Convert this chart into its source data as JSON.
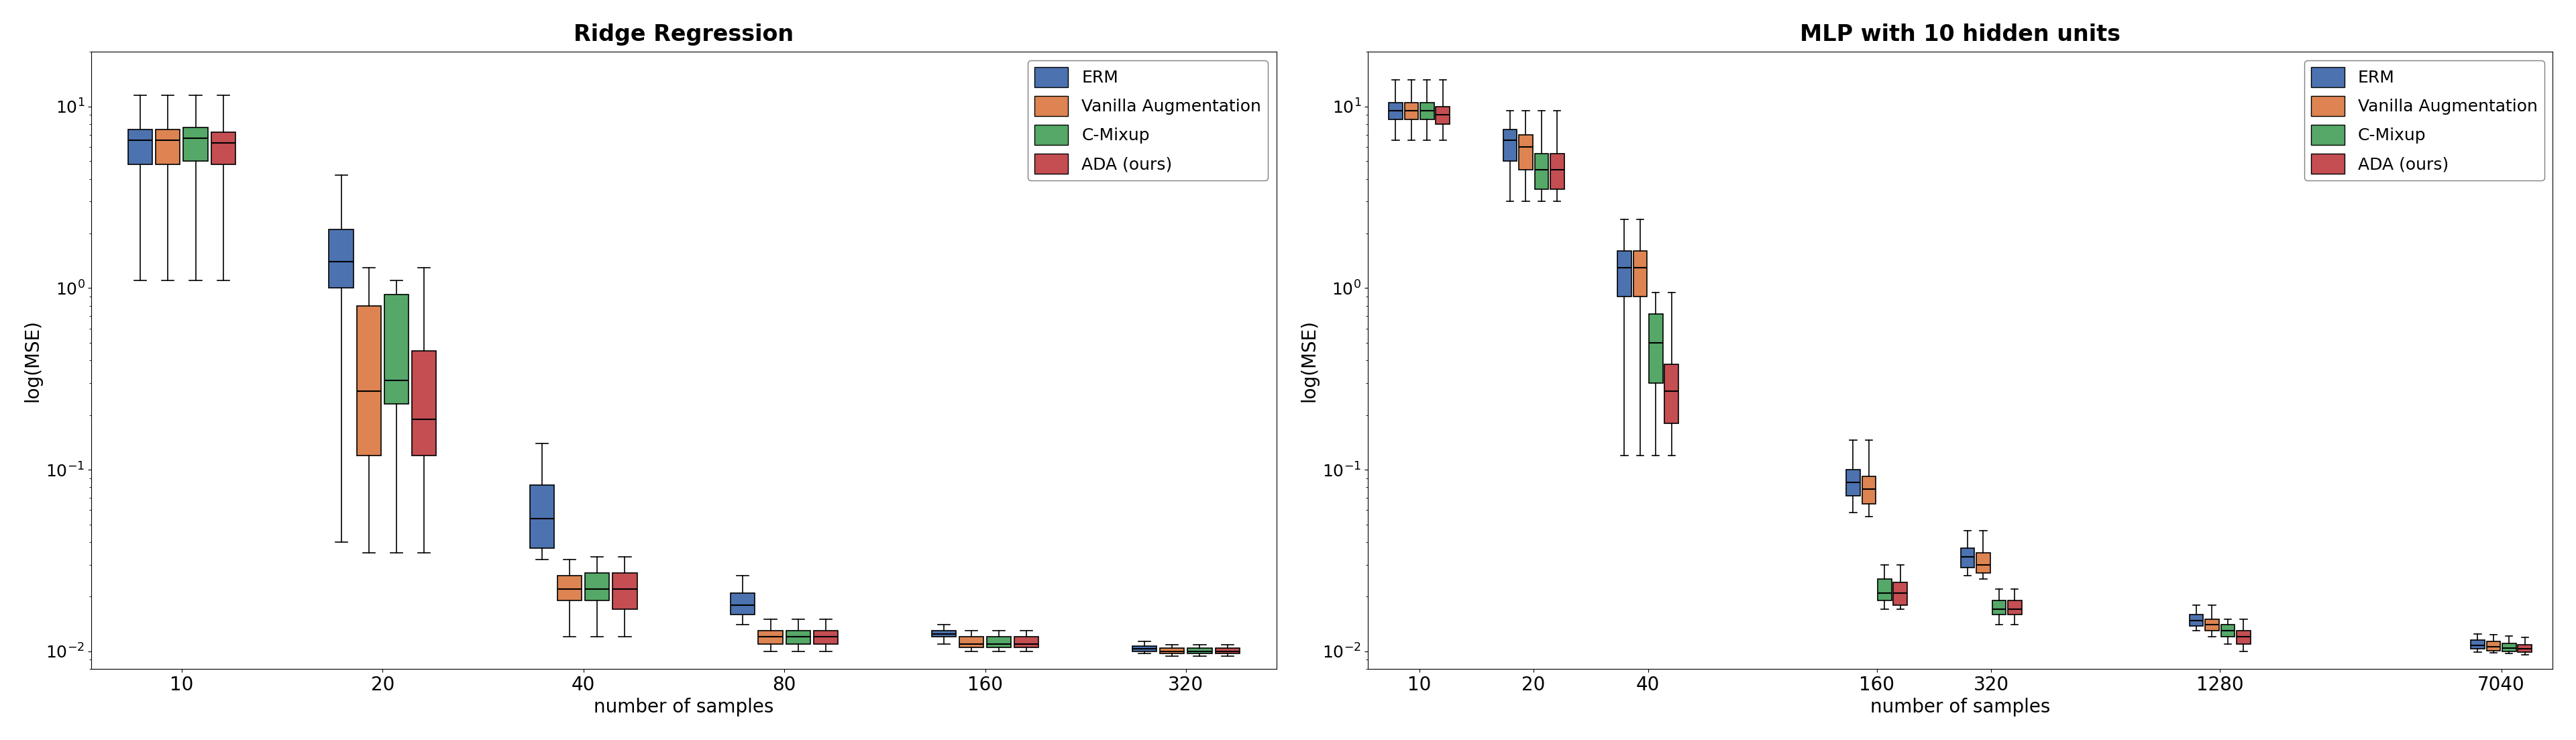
{
  "left_title": "Ridge Regression",
  "right_title": "MLP with 10 hidden units",
  "xlabel": "number of samples",
  "ylabel": "log(MSE)",
  "colors": {
    "ERM": "#4C72B0",
    "Vanilla Augmentation": "#DD8452",
    "C-Mixup": "#55A868",
    "ADA (ours)": "#C44E52"
  },
  "legend_labels": [
    "ERM",
    "Vanilla Augmentation",
    "C-Mixup",
    "ADA (ours)"
  ],
  "left_xticks": [
    10,
    20,
    40,
    80,
    160,
    320
  ],
  "right_xticks": [
    10,
    20,
    40,
    160,
    320,
    1280,
    7040
  ],
  "ylim_left": [
    0.008,
    20
  ],
  "ylim_right": [
    0.008,
    20
  ],
  "left_data": {
    "10": {
      "ERM": {
        "whislo": 1.1,
        "q1": 4.8,
        "med": 6.5,
        "q3": 7.5,
        "whishi": 11.5
      },
      "Vanilla Augmentation": {
        "whislo": 1.1,
        "q1": 4.8,
        "med": 6.5,
        "q3": 7.5,
        "whishi": 11.5
      },
      "C-Mixup": {
        "whislo": 1.1,
        "q1": 5.0,
        "med": 6.7,
        "q3": 7.7,
        "whishi": 11.5
      },
      "ADA (ours)": {
        "whislo": 1.1,
        "q1": 4.8,
        "med": 6.3,
        "q3": 7.2,
        "whishi": 11.5
      }
    },
    "20": {
      "ERM": {
        "whislo": 0.04,
        "q1": 1.0,
        "med": 1.4,
        "q3": 2.1,
        "whishi": 4.2
      },
      "Vanilla Augmentation": {
        "whislo": 0.035,
        "q1": 0.12,
        "med": 0.27,
        "q3": 0.8,
        "whishi": 1.3
      },
      "C-Mixup": {
        "whislo": 0.035,
        "q1": 0.23,
        "med": 0.31,
        "q3": 0.92,
        "whishi": 1.1
      },
      "ADA (ours)": {
        "whislo": 0.035,
        "q1": 0.12,
        "med": 0.19,
        "q3": 0.45,
        "whishi": 1.3
      }
    },
    "40": {
      "ERM": {
        "whislo": 0.032,
        "q1": 0.037,
        "med": 0.054,
        "q3": 0.082,
        "whishi": 0.14
      },
      "Vanilla Augmentation": {
        "whislo": 0.012,
        "q1": 0.019,
        "med": 0.022,
        "q3": 0.026,
        "whishi": 0.032
      },
      "C-Mixup": {
        "whislo": 0.012,
        "q1": 0.019,
        "med": 0.022,
        "q3": 0.027,
        "whishi": 0.033
      },
      "ADA (ours)": {
        "whislo": 0.012,
        "q1": 0.017,
        "med": 0.022,
        "q3": 0.027,
        "whishi": 0.033
      }
    },
    "80": {
      "ERM": {
        "whislo": 0.014,
        "q1": 0.016,
        "med": 0.018,
        "q3": 0.021,
        "whishi": 0.026
      },
      "Vanilla Augmentation": {
        "whislo": 0.01,
        "q1": 0.011,
        "med": 0.012,
        "q3": 0.013,
        "whishi": 0.015
      },
      "C-Mixup": {
        "whislo": 0.01,
        "q1": 0.011,
        "med": 0.012,
        "q3": 0.013,
        "whishi": 0.015
      },
      "ADA (ours)": {
        "whislo": 0.01,
        "q1": 0.011,
        "med": 0.012,
        "q3": 0.013,
        "whishi": 0.015
      }
    },
    "160": {
      "ERM": {
        "whislo": 0.011,
        "q1": 0.012,
        "med": 0.0125,
        "q3": 0.013,
        "whishi": 0.014
      },
      "Vanilla Augmentation": {
        "whislo": 0.01,
        "q1": 0.0105,
        "med": 0.011,
        "q3": 0.012,
        "whishi": 0.013
      },
      "C-Mixup": {
        "whislo": 0.01,
        "q1": 0.0105,
        "med": 0.011,
        "q3": 0.012,
        "whishi": 0.013
      },
      "ADA (ours)": {
        "whislo": 0.01,
        "q1": 0.0105,
        "med": 0.011,
        "q3": 0.012,
        "whishi": 0.013
      }
    },
    "320": {
      "ERM": {
        "whislo": 0.0097,
        "q1": 0.01,
        "med": 0.0103,
        "q3": 0.0107,
        "whishi": 0.0113
      },
      "Vanilla Augmentation": {
        "whislo": 0.0094,
        "q1": 0.0097,
        "med": 0.01,
        "q3": 0.0104,
        "whishi": 0.0109
      },
      "C-Mixup": {
        "whislo": 0.0094,
        "q1": 0.0097,
        "med": 0.01,
        "q3": 0.0104,
        "whishi": 0.0109
      },
      "ADA (ours)": {
        "whislo": 0.0094,
        "q1": 0.0097,
        "med": 0.01,
        "q3": 0.0104,
        "whishi": 0.0109
      }
    }
  },
  "right_data": {
    "10": {
      "ERM": {
        "whislo": 6.5,
        "q1": 8.5,
        "med": 9.5,
        "q3": 10.5,
        "whishi": 14.0
      },
      "Vanilla Augmentation": {
        "whislo": 6.5,
        "q1": 8.5,
        "med": 9.5,
        "q3": 10.5,
        "whishi": 14.0
      },
      "C-Mixup": {
        "whislo": 6.5,
        "q1": 8.5,
        "med": 9.5,
        "q3": 10.5,
        "whishi": 14.0
      },
      "ADA (ours)": {
        "whislo": 6.5,
        "q1": 8.0,
        "med": 9.0,
        "q3": 10.0,
        "whishi": 14.0
      }
    },
    "20": {
      "ERM": {
        "whislo": 3.0,
        "q1": 5.0,
        "med": 6.5,
        "q3": 7.5,
        "whishi": 9.5
      },
      "Vanilla Augmentation": {
        "whislo": 3.0,
        "q1": 4.5,
        "med": 6.0,
        "q3": 7.0,
        "whishi": 9.5
      },
      "C-Mixup": {
        "whislo": 3.0,
        "q1": 3.5,
        "med": 4.5,
        "q3": 5.5,
        "whishi": 9.5
      },
      "ADA (ours)": {
        "whislo": 3.0,
        "q1": 3.5,
        "med": 4.5,
        "q3": 5.5,
        "whishi": 9.5
      }
    },
    "40": {
      "ERM": {
        "whislo": 0.12,
        "q1": 0.9,
        "med": 1.3,
        "q3": 1.6,
        "whishi": 2.4
      },
      "Vanilla Augmentation": {
        "whislo": 0.12,
        "q1": 0.9,
        "med": 1.3,
        "q3": 1.6,
        "whishi": 2.4
      },
      "C-Mixup": {
        "whislo": 0.12,
        "q1": 0.3,
        "med": 0.5,
        "q3": 0.72,
        "whishi": 0.95
      },
      "ADA (ours)": {
        "whislo": 0.12,
        "q1": 0.18,
        "med": 0.27,
        "q3": 0.38,
        "whishi": 0.95
      }
    },
    "160": {
      "ERM": {
        "whislo": 0.058,
        "q1": 0.072,
        "med": 0.085,
        "q3": 0.1,
        "whishi": 0.145
      },
      "Vanilla Augmentation": {
        "whislo": 0.055,
        "q1": 0.065,
        "med": 0.078,
        "q3": 0.092,
        "whishi": 0.145
      },
      "C-Mixup": {
        "whislo": 0.017,
        "q1": 0.019,
        "med": 0.021,
        "q3": 0.025,
        "whishi": 0.03
      },
      "ADA (ours)": {
        "whislo": 0.017,
        "q1": 0.018,
        "med": 0.021,
        "q3": 0.024,
        "whishi": 0.03
      }
    },
    "320": {
      "ERM": {
        "whislo": 0.026,
        "q1": 0.029,
        "med": 0.033,
        "q3": 0.037,
        "whishi": 0.046
      },
      "Vanilla Augmentation": {
        "whislo": 0.025,
        "q1": 0.027,
        "med": 0.03,
        "q3": 0.035,
        "whishi": 0.046
      },
      "C-Mixup": {
        "whislo": 0.014,
        "q1": 0.016,
        "med": 0.017,
        "q3": 0.019,
        "whishi": 0.022
      },
      "ADA (ours)": {
        "whislo": 0.014,
        "q1": 0.016,
        "med": 0.017,
        "q3": 0.019,
        "whishi": 0.022
      }
    },
    "1280": {
      "ERM": {
        "whislo": 0.013,
        "q1": 0.0138,
        "med": 0.0148,
        "q3": 0.016,
        "whishi": 0.018
      },
      "Vanilla Augmentation": {
        "whislo": 0.012,
        "q1": 0.013,
        "med": 0.014,
        "q3": 0.015,
        "whishi": 0.018
      },
      "C-Mixup": {
        "whislo": 0.011,
        "q1": 0.012,
        "med": 0.013,
        "q3": 0.014,
        "whishi": 0.015
      },
      "ADA (ours)": {
        "whislo": 0.01,
        "q1": 0.011,
        "med": 0.012,
        "q3": 0.013,
        "whishi": 0.015
      }
    },
    "7040": {
      "ERM": {
        "whislo": 0.0099,
        "q1": 0.0103,
        "med": 0.0108,
        "q3": 0.0115,
        "whishi": 0.0125
      },
      "Vanilla Augmentation": {
        "whislo": 0.0098,
        "q1": 0.0101,
        "med": 0.0106,
        "q3": 0.0113,
        "whishi": 0.0123
      },
      "C-Mixup": {
        "whislo": 0.0097,
        "q1": 0.01,
        "med": 0.0104,
        "q3": 0.0111,
        "whishi": 0.0121
      },
      "ADA (ours)": {
        "whislo": 0.0096,
        "q1": 0.0099,
        "med": 0.0103,
        "q3": 0.0109,
        "whishi": 0.0119
      }
    }
  }
}
